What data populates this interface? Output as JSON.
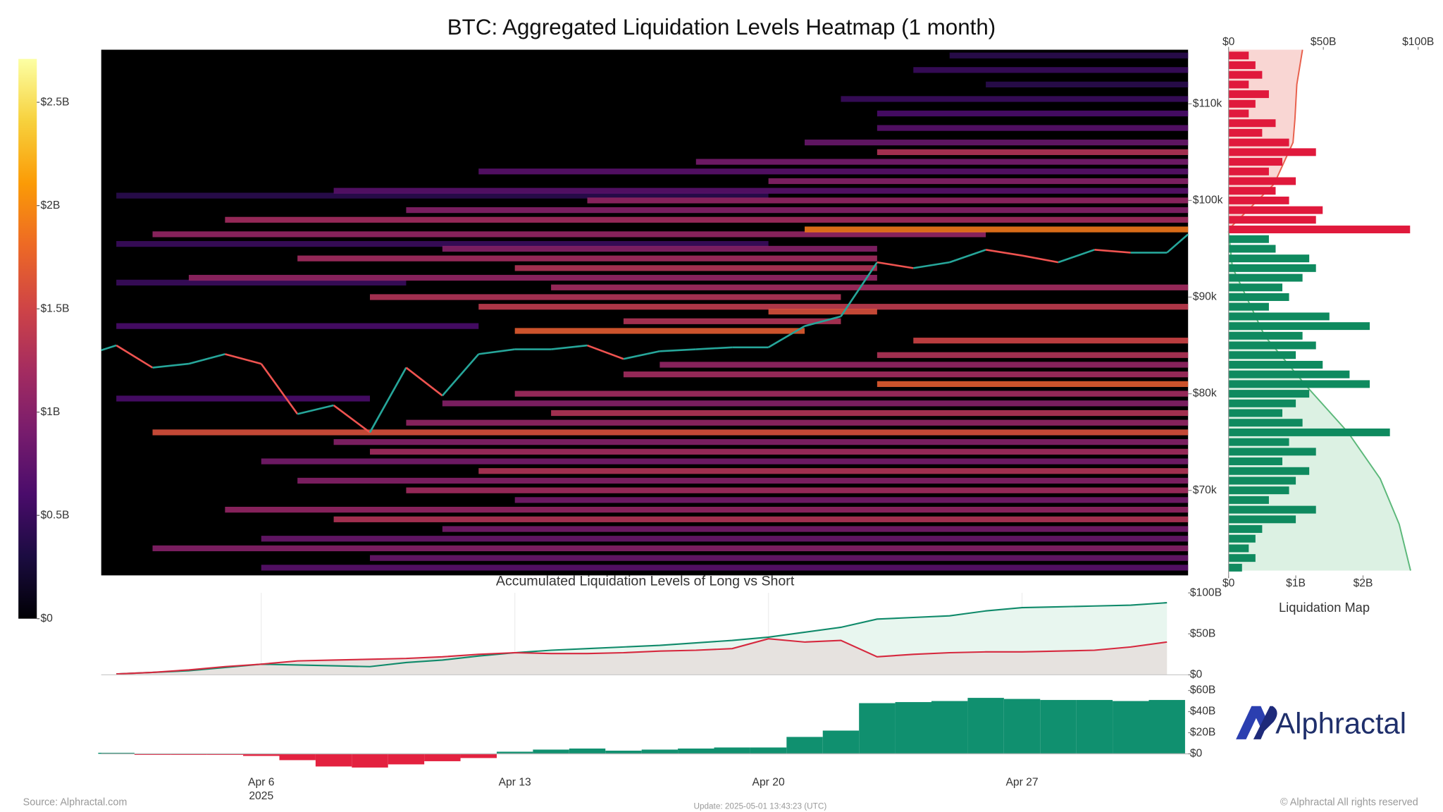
{
  "chart_data": [
    {
      "type": "heatmap",
      "title": "BTC: Aggregated Liquidation Levels Heatmap (1 month)",
      "xlim": [
        "2025-04-01T14:00:00Z",
        "2025-05-01T14:00:00Z"
      ],
      "ylim": [
        61200,
        115600
      ],
      "yticks": [
        {
          "value": 70000,
          "label": "$70k"
        },
        {
          "value": 80000,
          "label": "$80k"
        },
        {
          "value": 90000,
          "label": "$90k"
        },
        {
          "value": 100000,
          "label": "$100k"
        },
        {
          "value": 110000,
          "label": "$110k"
        }
      ],
      "colorbar": {
        "clim": [
          0,
          2.71
        ],
        "ticks": [
          {
            "value": 0,
            "label": "$0"
          },
          {
            "value": 0.5,
            "label": "$0.5B"
          },
          {
            "value": 1,
            "label": "$1B"
          },
          {
            "value": 1.5,
            "label": "$1.5B"
          },
          {
            "value": 2,
            "label": "$2B"
          },
          {
            "value": 2.5,
            "label": "$2.5B"
          }
        ],
        "colorscale": [
          "#000004",
          "#1b0c41",
          "#4a0c6b",
          "#781c6d",
          "#a52c60",
          "#cf4446",
          "#ed6925",
          "#fb9b06",
          "#f7d13d",
          "#fcffa4"
        ]
      },
      "bands": {
        "price": [
          115000,
          113500,
          112000,
          110500,
          109000,
          107500,
          106000,
          105000,
          104000,
          103000,
          102000,
          101000,
          100000,
          99000,
          98000,
          97000,
          96500,
          95000,
          94000,
          93000,
          92000,
          91000,
          90000,
          89000,
          88500,
          87500,
          86500,
          85500,
          84000,
          83000,
          82000,
          81000,
          80000,
          79000,
          78000,
          77000,
          76000,
          75000,
          74000,
          73000,
          72000,
          71000,
          70000,
          69000,
          68000,
          67000,
          66000,
          65000,
          64000,
          63000,
          62000,
          87000,
          91500,
          79500,
          95500,
          100500
        ],
        "start": [
          "2025-04-25",
          "2025-04-24",
          "2025-04-26",
          "2025-04-22",
          "2025-04-23",
          "2025-04-23",
          "2025-04-21",
          "2025-04-23",
          "2025-04-18",
          "2025-04-12",
          "2025-04-20",
          "2025-04-08",
          "2025-04-15",
          "2025-04-10",
          "2025-04-05",
          "2025-04-21",
          "2025-04-03",
          "2025-04-11",
          "2025-04-07",
          "2025-04-13",
          "2025-04-04",
          "2025-04-14",
          "2025-04-09",
          "2025-04-12",
          "2025-04-20",
          "2025-04-16",
          "2025-04-13",
          "2025-04-24",
          "2025-04-23",
          "2025-04-17",
          "2025-04-16",
          "2025-04-23",
          "2025-04-13",
          "2025-04-11",
          "2025-04-14",
          "2025-04-10",
          "2025-04-03",
          "2025-04-08",
          "2025-04-09",
          "2025-04-06",
          "2025-04-12",
          "2025-04-07",
          "2025-04-10",
          "2025-04-13",
          "2025-04-05",
          "2025-04-08",
          "2025-04-11",
          "2025-04-06",
          "2025-04-03",
          "2025-04-09",
          "2025-04-06",
          "2025-04-02",
          "2025-04-02",
          "2025-04-02",
          "2025-04-02",
          "2025-04-02"
        ],
        "end": [
          "2025-05-01T14:00:00Z",
          "2025-05-01T14:00:00Z",
          "2025-05-01T14:00:00Z",
          "2025-05-01T14:00:00Z",
          "2025-05-01T14:00:00Z",
          "2025-05-01T14:00:00Z",
          "2025-05-01T14:00:00Z",
          "2025-05-01T14:00:00Z",
          "2025-05-01T14:00:00Z",
          "2025-05-01T14:00:00Z",
          "2025-05-01T14:00:00Z",
          "2025-05-01T14:00:00Z",
          "2025-05-01T14:00:00Z",
          "2025-05-01T14:00:00Z",
          "2025-05-01T14:00:00Z",
          "2025-05-01T14:00:00Z",
          "2025-04-26",
          "2025-04-23",
          "2025-04-23",
          "2025-04-23",
          "2025-04-23",
          "2025-05-01T14:00:00Z",
          "2025-04-22",
          "2025-05-01T14:00:00Z",
          "2025-04-23",
          "2025-04-22",
          "2025-04-21",
          "2025-05-01T14:00:00Z",
          "2025-05-01T14:00:00Z",
          "2025-05-01T14:00:00Z",
          "2025-05-01T14:00:00Z",
          "2025-05-01T14:00:00Z",
          "2025-05-01T14:00:00Z",
          "2025-05-01T14:00:00Z",
          "2025-05-01T14:00:00Z",
          "2025-05-01T14:00:00Z",
          "2025-05-01T14:00:00Z",
          "2025-05-01T14:00:00Z",
          "2025-05-01T14:00:00Z",
          "2025-05-01T14:00:00Z",
          "2025-05-01T14:00:00Z",
          "2025-05-01T14:00:00Z",
          "2025-05-01T14:00:00Z",
          "2025-05-01T14:00:00Z",
          "2025-05-01T14:00:00Z",
          "2025-05-01T14:00:00Z",
          "2025-05-01T14:00:00Z",
          "2025-05-01T14:00:00Z",
          "2025-05-01T14:00:00Z",
          "2025-05-01T14:00:00Z",
          "2025-05-01T14:00:00Z",
          "2025-04-12",
          "2025-04-10",
          "2025-04-09",
          "2025-04-20",
          "2025-04-20"
        ],
        "values": [
          0.4,
          0.5,
          0.4,
          0.5,
          0.6,
          0.7,
          0.8,
          1.3,
          0.9,
          0.7,
          1.0,
          0.7,
          1.1,
          1.0,
          1.2,
          1.9,
          1.1,
          1.0,
          1.2,
          1.3,
          1.1,
          1.2,
          1.3,
          1.4,
          1.6,
          1.3,
          1.7,
          1.5,
          1.3,
          1.1,
          1.2,
          1.7,
          1.2,
          1.0,
          1.3,
          1.1,
          1.6,
          1.0,
          1.2,
          0.9,
          1.3,
          1.0,
          1.2,
          0.9,
          1.1,
          1.3,
          0.9,
          0.8,
          1.0,
          0.8,
          0.7,
          0.6,
          0.5,
          0.6,
          0.5,
          0.4
        ]
      },
      "price": {
        "up_color": "#26a69a",
        "down_color": "#ef5350",
        "x": [
          "2025-04-01T14:00:00Z",
          "2025-04-02",
          "2025-04-03",
          "2025-04-04",
          "2025-04-05",
          "2025-04-06",
          "2025-04-07",
          "2025-04-08",
          "2025-04-09",
          "2025-04-10",
          "2025-04-11",
          "2025-04-12",
          "2025-04-13",
          "2025-04-14",
          "2025-04-15",
          "2025-04-16",
          "2025-04-17",
          "2025-04-18",
          "2025-04-19",
          "2025-04-20",
          "2025-04-21",
          "2025-04-22",
          "2025-04-23",
          "2025-04-24",
          "2025-04-25",
          "2025-04-26",
          "2025-04-27",
          "2025-04-28",
          "2025-04-29",
          "2025-04-30",
          "2025-05-01",
          "2025-05-01T14:00:00Z"
        ],
        "values": [
          84500,
          85000,
          82700,
          83100,
          84100,
          83100,
          77900,
          78800,
          76000,
          82700,
          79800,
          84100,
          84600,
          84600,
          85000,
          83600,
          84400,
          84600,
          84800,
          84800,
          87000,
          88000,
          93600,
          93000,
          93600,
          94900,
          94300,
          93600,
          94900,
          94600,
          94600,
          96500
        ]
      }
    },
    {
      "type": "liquidation_map",
      "title": "Liquidation Map",
      "ylim": [
        61200,
        115600
      ],
      "xlim": [
        0,
        2.82
      ],
      "xticks": [
        {
          "value": 0,
          "label": "$0"
        },
        {
          "value": 1,
          "label": "$1B"
        },
        {
          "value": 2,
          "label": "$2B"
        }
      ],
      "x2lim": [
        0,
        100
      ],
      "x2ticks": [
        {
          "value": 0,
          "label": "$0"
        },
        {
          "value": 50,
          "label": "$50B"
        },
        {
          "value": 100,
          "label": "$100B"
        }
      ],
      "short": {
        "color": "#e0193c",
        "price": [
          115000,
          114000,
          113000,
          112000,
          111000,
          110000,
          109000,
          108000,
          107000,
          106000,
          105000,
          104000,
          103000,
          102000,
          101000,
          100000,
          99000,
          98000,
          97000
        ],
        "values": [
          0.3,
          0.4,
          0.5,
          0.3,
          0.6,
          0.4,
          0.3,
          0.7,
          0.5,
          0.9,
          1.3,
          0.8,
          0.6,
          1.0,
          0.7,
          0.9,
          1.4,
          1.3,
          2.7
        ]
      },
      "long": {
        "color": "#0f8a5f",
        "price": [
          96000,
          95000,
          94000,
          93000,
          92000,
          91000,
          90000,
          89000,
          88000,
          87000,
          86000,
          85000,
          84000,
          83000,
          82000,
          81000,
          80000,
          79000,
          78000,
          77000,
          76000,
          75000,
          74000,
          73000,
          72000,
          71000,
          70000,
          69000,
          68000,
          67000,
          66000,
          65000,
          64000,
          63000,
          62000
        ],
        "values": [
          0.6,
          0.7,
          1.2,
          1.3,
          1.1,
          0.8,
          0.9,
          0.6,
          1.5,
          2.1,
          1.1,
          1.3,
          1.0,
          1.4,
          1.8,
          2.1,
          1.2,
          1.0,
          0.8,
          1.1,
          2.4,
          0.9,
          1.3,
          0.8,
          1.2,
          1.0,
          0.9,
          0.6,
          1.3,
          1.0,
          0.5,
          0.4,
          0.3,
          0.4,
          0.2
        ]
      },
      "short_cumulative": {
        "color": "#e8604c",
        "fill": "#f9d6d3",
        "price": [
          96800,
          97400,
          101700,
          106000,
          108400,
          112000,
          115600
        ],
        "values": [
          0,
          2,
          24,
          34,
          35,
          36,
          39
        ]
      },
      "long_cumulative": {
        "color": "#5cb87a",
        "fill": "#dcf1e3",
        "price": [
          96800,
          93100,
          86000,
          80800,
          76000,
          71200,
          66500,
          61700
        ],
        "values": [
          0,
          2,
          19,
          41,
          63,
          80,
          90,
          96
        ]
      }
    },
    {
      "type": "line",
      "title": "Accumulated Liquidation Levels of Long vs Short",
      "xlim": [
        "2025-04-01T14:00:00Z",
        "2025-05-01T14:00:00Z"
      ],
      "ylim": [
        0,
        100
      ],
      "yticks": [
        {
          "value": 0,
          "label": "$0"
        },
        {
          "value": 50,
          "label": "$50B"
        },
        {
          "value": 100,
          "label": "$100B"
        }
      ],
      "x": [
        "2025-04-02",
        "2025-04-03",
        "2025-04-04",
        "2025-04-05",
        "2025-04-06",
        "2025-04-07",
        "2025-04-08",
        "2025-04-09",
        "2025-04-10",
        "2025-04-11",
        "2025-04-12",
        "2025-04-13",
        "2025-04-14",
        "2025-04-15",
        "2025-04-16",
        "2025-04-17",
        "2025-04-18",
        "2025-04-19",
        "2025-04-20",
        "2025-04-21",
        "2025-04-22",
        "2025-04-23",
        "2025-04-24",
        "2025-04-25",
        "2025-04-26",
        "2025-04-27",
        "2025-04-28",
        "2025-04-29",
        "2025-04-30",
        "2025-05-01"
      ],
      "series": [
        {
          "color": "#0f8a6a",
          "fill": "#e8f6ef",
          "values": [
            1,
            3,
            5,
            9,
            13,
            12,
            11,
            10,
            15,
            18,
            23,
            27,
            30,
            32,
            34,
            36,
            39,
            42,
            46,
            52,
            58,
            68,
            70,
            72,
            78,
            82,
            83,
            84,
            85,
            88
          ]
        },
        {
          "color": "#d6283e",
          "fill": "#e6e2df",
          "values": [
            1,
            3,
            6,
            10,
            13,
            17,
            18,
            19,
            20,
            22,
            25,
            27,
            26,
            26,
            27,
            29,
            30,
            32,
            44,
            40,
            42,
            22,
            25,
            27,
            28,
            28,
            29,
            30,
            34,
            40
          ]
        }
      ]
    },
    {
      "type": "bar",
      "xlim": [
        "2025-04-01T14:00:00Z",
        "2025-05-01T14:00:00Z"
      ],
      "ylim": [
        -15,
        60
      ],
      "yticks": [
        {
          "value": 0,
          "label": "$0"
        },
        {
          "value": 20,
          "label": "$20B"
        },
        {
          "value": 40,
          "label": "$40B"
        },
        {
          "value": 60,
          "label": "$60B"
        }
      ],
      "xticks": [
        {
          "value": "2025-04-06",
          "label": "Apr 6"
        },
        {
          "value": "2025-04-13",
          "label": "Apr 13"
        },
        {
          "value": "2025-04-20",
          "label": "Apr 20"
        },
        {
          "value": "2025-04-27",
          "label": "Apr 27"
        }
      ],
      "x_sublabel": "2025",
      "positive_color": "#10906f",
      "negative_color": "#e3213f",
      "x": [
        "2025-04-02",
        "2025-04-03",
        "2025-04-04",
        "2025-04-05",
        "2025-04-06",
        "2025-04-07",
        "2025-04-08",
        "2025-04-09",
        "2025-04-10",
        "2025-04-11",
        "2025-04-12",
        "2025-04-13",
        "2025-04-14",
        "2025-04-15",
        "2025-04-16",
        "2025-04-17",
        "2025-04-18",
        "2025-04-19",
        "2025-04-20",
        "2025-04-21",
        "2025-04-22",
        "2025-04-23",
        "2025-04-24",
        "2025-04-25",
        "2025-04-26",
        "2025-04-27",
        "2025-04-28",
        "2025-04-29",
        "2025-04-30",
        "2025-05-01"
      ],
      "values": [
        1,
        -1,
        -1,
        -1,
        -2,
        -6,
        -12,
        -13,
        -10,
        -7,
        -4,
        2,
        4,
        5,
        3,
        4,
        5,
        6,
        6,
        16,
        22,
        48,
        49,
        50,
        53,
        52,
        51,
        51,
        50,
        51
      ]
    }
  ],
  "footer": {
    "source": "Source: Alphractal.com",
    "update": "Update: 2025-05-01 13:43:23 (UTC)",
    "copyright": "© Alphractal All rights reserved",
    "logo": "Alphractal"
  }
}
